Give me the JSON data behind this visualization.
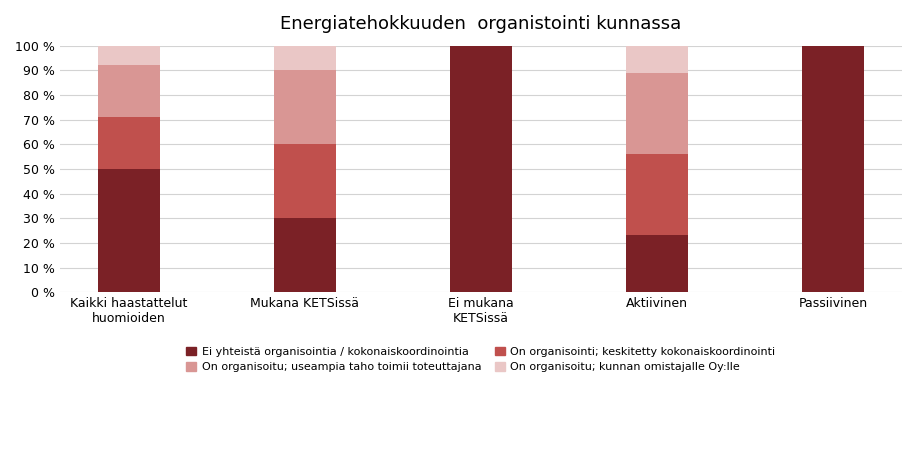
{
  "title": "Energiatehokkuuden  organistointi kunnassa",
  "categories": [
    "Kaikki haastattelut\nhuomioiden",
    "Mukana KETSissä",
    "Ei mukana\nKETSissä",
    "Aktiivinen",
    "Passiivinen"
  ],
  "series": [
    {
      "label": "Ei yhteistä organisointia / kokonaiskoordinointia",
      "color": "#7B2126",
      "values": [
        50,
        30,
        100,
        23,
        100
      ]
    },
    {
      "label": "On organisointi; keskitetty kokonaiskoordinointi",
      "color": "#C0504D",
      "values": [
        21,
        30,
        0,
        33,
        0
      ]
    },
    {
      "label": "On organisoitu; useampia taho toimii toteuttajana",
      "color": "#D99694",
      "values": [
        21,
        30,
        0,
        33,
        0
      ]
    },
    {
      "label": "On organisoitu; kunnan omistajalle Oy:lle",
      "color": "#EAC7C6",
      "values": [
        8,
        10,
        0,
        11,
        0
      ]
    }
  ],
  "legend_order": [
    0,
    2,
    1,
    3
  ],
  "ylim": [
    0,
    100
  ],
  "yticks": [
    0,
    10,
    20,
    30,
    40,
    50,
    60,
    70,
    80,
    90,
    100
  ],
  "ytick_labels": [
    "0 %",
    "10 %",
    "20 %",
    "30 %",
    "40 %",
    "50 %",
    "60 %",
    "70 %",
    "80 %",
    "90 %",
    "100 %"
  ],
  "background_color": "#FFFFFF",
  "grid_color": "#D3D3D3",
  "title_fontsize": 13,
  "tick_fontsize": 9,
  "legend_fontsize": 8,
  "bar_width": 0.35
}
